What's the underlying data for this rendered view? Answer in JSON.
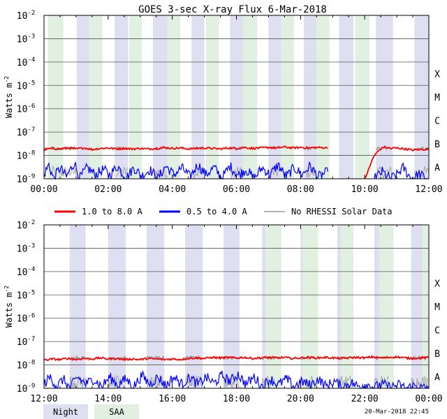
{
  "chart_data": {
    "type": "line",
    "title": "GOES 3-sec X-ray Flux    6-Mar-2018",
    "ylabel": "Watts m",
    "ylabel_sup": "-2",
    "y_scale": "log",
    "ylim": [
      1e-09,
      0.01
    ],
    "y_ticks": [
      {
        "base": "10",
        "exp": "-2"
      },
      {
        "base": "10",
        "exp": "-3"
      },
      {
        "base": "10",
        "exp": "-4"
      },
      {
        "base": "10",
        "exp": "-5"
      },
      {
        "base": "10",
        "exp": "-6"
      },
      {
        "base": "10",
        "exp": "-7"
      },
      {
        "base": "10",
        "exp": "-8"
      },
      {
        "base": "10",
        "exp": "-9"
      }
    ],
    "flare_classes": [
      "X",
      "M",
      "C",
      "B",
      "A"
    ],
    "legend": {
      "long": "1.0 to 8.0 A",
      "short": "0.5 to 4.0 A",
      "none": "No RHESSI Solar Data"
    },
    "band_legend": {
      "night": "Night",
      "saa": "SAA"
    },
    "colors": {
      "long": "#ff0000",
      "short": "#0000ff",
      "none": "#999999",
      "night": "#dedff0",
      "saa": "#e1f0e1",
      "grid": "#555555"
    },
    "timestamp": "20-Mar-2018 22:45",
    "panels": [
      {
        "xlim": [
          0,
          12
        ],
        "x_tick_labels": [
          "00:00",
          "02:00",
          "04:00",
          "06:00",
          "08:00",
          "10:00",
          "12:00"
        ],
        "night": [
          [
            0.2,
            0.55
          ],
          [
            1.02,
            1.45
          ],
          [
            2.2,
            2.62
          ],
          [
            3.4,
            3.85
          ],
          [
            4.6,
            5.0
          ],
          [
            5.8,
            6.25
          ],
          [
            7.0,
            7.4
          ],
          [
            8.1,
            8.5
          ],
          [
            9.2,
            9.65
          ],
          [
            10.35,
            10.88
          ],
          [
            11.55,
            12.0
          ]
        ],
        "saa": [
          [
            0.12,
            0.6
          ],
          [
            1.4,
            1.82
          ],
          [
            2.65,
            3.05
          ],
          [
            3.85,
            4.25
          ],
          [
            5.05,
            5.45
          ],
          [
            6.2,
            6.65
          ],
          [
            7.4,
            7.8
          ],
          [
            8.5,
            8.9
          ],
          [
            9.7,
            10.15
          ]
        ],
        "no_data": [
          [
            8.85,
            10.0
          ]
        ],
        "rhessi_gaps": [
          [
            0.2,
            0.6
          ],
          [
            0.6,
            1.0
          ],
          [
            2.25,
            2.6
          ],
          [
            3.45,
            3.85
          ],
          [
            4.65,
            4.95
          ],
          [
            5.85,
            6.2
          ],
          [
            7.05,
            7.35
          ],
          [
            8.15,
            8.5
          ],
          [
            10.35,
            10.85
          ],
          [
            11.55,
            12.0
          ]
        ],
        "long": [
          [
            0.0,
            1.8e-08
          ],
          [
            0.25,
            2e-08
          ],
          [
            0.5,
            1.9e-08
          ],
          [
            0.75,
            2.1e-08
          ],
          [
            1.0,
            1.9e-08
          ],
          [
            1.25,
            2.1e-08
          ],
          [
            1.5,
            1.8e-08
          ],
          [
            1.75,
            2e-08
          ],
          [
            2.0,
            2.1e-08
          ],
          [
            2.25,
            1.9e-08
          ],
          [
            2.5,
            2e-08
          ],
          [
            2.75,
            1.9e-08
          ],
          [
            3.0,
            2e-08
          ],
          [
            3.25,
            1.9e-08
          ],
          [
            3.5,
            2e-08
          ],
          [
            3.75,
            2.2e-08
          ],
          [
            4.0,
            2e-08
          ],
          [
            4.25,
            2.1e-08
          ],
          [
            4.5,
            1.9e-08
          ],
          [
            4.75,
            2e-08
          ],
          [
            5.0,
            2.1e-08
          ],
          [
            5.25,
            2e-08
          ],
          [
            5.5,
            1.9e-08
          ],
          [
            5.75,
            2.1e-08
          ],
          [
            6.0,
            2e-08
          ],
          [
            6.25,
            2.2e-08
          ],
          [
            6.5,
            2e-08
          ],
          [
            6.75,
            2.1e-08
          ],
          [
            7.0,
            2.2e-08
          ],
          [
            7.25,
            2.1e-08
          ],
          [
            7.5,
            2.3e-08
          ],
          [
            7.75,
            2.1e-08
          ],
          [
            8.0,
            2.2e-08
          ],
          [
            8.25,
            2.1e-08
          ],
          [
            8.5,
            2.2e-08
          ],
          [
            8.85,
            2.1e-08
          ],
          [
            null,
            null
          ],
          [
            10.0,
            1e-09
          ],
          [
            10.1,
            2e-09
          ],
          [
            10.2,
            5e-09
          ],
          [
            10.3,
            1e-08
          ],
          [
            10.45,
            1.7e-08
          ],
          [
            10.6,
            2.3e-08
          ],
          [
            10.8,
            2e-08
          ],
          [
            11.0,
            2.1e-08
          ],
          [
            11.25,
            1.9e-08
          ],
          [
            11.5,
            1.7e-08
          ],
          [
            11.75,
            1.8e-08
          ],
          [
            12.0,
            1.8e-08
          ]
        ],
        "short": [
          [
            0.0,
            1.5e-09
          ],
          [
            0.15,
            4e-09
          ],
          [
            0.3,
            1e-09
          ],
          [
            0.5,
            3e-09
          ],
          [
            0.7,
            1.2e-09
          ],
          [
            0.95,
            5e-09
          ],
          [
            1.1,
            1e-09
          ],
          [
            1.35,
            3e-09
          ],
          [
            1.6,
            1.5e-09
          ],
          [
            1.85,
            2.5e-09
          ],
          [
            2.05,
            1.5e-09
          ],
          [
            2.3,
            3.5e-09
          ],
          [
            2.55,
            1e-09
          ],
          [
            2.8,
            3e-09
          ],
          [
            3.05,
            1.3e-09
          ],
          [
            3.3,
            2.5e-09
          ],
          [
            3.55,
            1e-09
          ],
          [
            3.8,
            3.5e-09
          ],
          [
            4.05,
            1.5e-09
          ],
          [
            4.3,
            3e-09
          ],
          [
            4.55,
            1.2e-09
          ],
          [
            4.8,
            4e-09
          ],
          [
            5.05,
            1.5e-09
          ],
          [
            5.3,
            3e-09
          ],
          [
            5.55,
            1.1e-09
          ],
          [
            5.8,
            3.5e-09
          ],
          [
            6.05,
            1.4e-09
          ],
          [
            6.3,
            2.5e-09
          ],
          [
            6.55,
            1e-09
          ],
          [
            6.8,
            3e-09
          ],
          [
            7.05,
            1.5e-09
          ],
          [
            7.3,
            4e-09
          ],
          [
            7.55,
            1.2e-09
          ],
          [
            7.8,
            3e-09
          ],
          [
            8.05,
            1.5e-09
          ],
          [
            8.3,
            3.5e-09
          ],
          [
            8.55,
            1.2e-09
          ],
          [
            8.85,
            2e-09
          ],
          [
            null,
            null
          ],
          [
            10.3,
            1e-09
          ],
          [
            10.55,
            2e-09
          ],
          [
            10.8,
            1e-09
          ],
          [
            11.0,
            1.5e-09
          ],
          [
            11.2,
            3e-09
          ],
          [
            11.45,
            1e-09
          ],
          [
            11.7,
            1.5e-09
          ],
          [
            12.0,
            1e-09
          ]
        ]
      },
      {
        "xlim": [
          12,
          24
        ],
        "x_tick_labels": [
          "12:00",
          "14:00",
          "16:00",
          "18:00",
          "20:00",
          "22:00",
          "00:00"
        ],
        "night": [
          [
            12.8,
            13.3
          ],
          [
            14.0,
            14.55
          ],
          [
            15.2,
            15.75
          ],
          [
            16.4,
            16.95
          ],
          [
            17.6,
            18.1
          ],
          [
            18.8,
            19.3
          ],
          [
            20.0,
            20.45
          ],
          [
            21.15,
            21.65
          ],
          [
            22.3,
            22.75
          ],
          [
            23.45,
            23.95
          ]
        ],
        "saa": [
          [
            18.9,
            19.4
          ],
          [
            20.05,
            20.55
          ],
          [
            21.25,
            21.65
          ],
          [
            22.45,
            22.9
          ],
          [
            23.8,
            24.0
          ]
        ],
        "no_data": [],
        "rhessi_gaps": [
          [
            12.8,
            13.3
          ],
          [
            14.0,
            14.55
          ],
          [
            15.2,
            15.75
          ],
          [
            16.4,
            16.95
          ],
          [
            17.6,
            18.15
          ],
          [
            18.8,
            19.3
          ],
          [
            20.0,
            20.45
          ],
          [
            21.15,
            21.65
          ],
          [
            22.3,
            22.75
          ],
          [
            23.45,
            23.95
          ]
        ],
        "long": [
          [
            12.0,
            1.6e-08
          ],
          [
            12.25,
            1.8e-08
          ],
          [
            12.5,
            1.7e-08
          ],
          [
            12.75,
            1.9e-08
          ],
          [
            13.0,
            1.7e-08
          ],
          [
            13.25,
            1.9e-08
          ],
          [
            13.5,
            1.8e-08
          ],
          [
            13.75,
            2e-08
          ],
          [
            14.0,
            1.8e-08
          ],
          [
            14.25,
            1.9e-08
          ],
          [
            14.5,
            1.7e-08
          ],
          [
            14.75,
            1.8e-08
          ],
          [
            15.0,
            1.7e-08
          ],
          [
            15.25,
            1.9e-08
          ],
          [
            15.5,
            1.8e-08
          ],
          [
            15.75,
            1.7e-08
          ],
          [
            16.0,
            1.8e-08
          ],
          [
            16.25,
            1.7e-08
          ],
          [
            16.5,
            1.9e-08
          ],
          [
            16.75,
            2e-08
          ],
          [
            17.0,
            1.9e-08
          ],
          [
            17.25,
            2.1e-08
          ],
          [
            17.5,
            2e-08
          ],
          [
            17.75,
            2.1e-08
          ],
          [
            18.0,
            2e-08
          ],
          [
            18.25,
            2.1e-08
          ],
          [
            18.5,
            1.9e-08
          ],
          [
            18.75,
            2e-08
          ],
          [
            19.0,
            2.1e-08
          ],
          [
            19.25,
            2e-08
          ],
          [
            19.5,
            2.1e-08
          ],
          [
            19.75,
            1.9e-08
          ],
          [
            20.0,
            2e-08
          ],
          [
            20.25,
            2.1e-08
          ],
          [
            20.5,
            2e-08
          ],
          [
            20.75,
            2.1e-08
          ],
          [
            21.0,
            2e-08
          ],
          [
            21.25,
            1.9e-08
          ],
          [
            21.5,
            2e-08
          ],
          [
            21.75,
            2.1e-08
          ],
          [
            22.0,
            2e-08
          ],
          [
            22.25,
            2.2e-08
          ],
          [
            22.5,
            2e-08
          ],
          [
            22.75,
            2.1e-08
          ],
          [
            23.0,
            2.2e-08
          ],
          [
            23.25,
            2e-08
          ],
          [
            23.5,
            1.9e-08
          ],
          [
            23.75,
            2e-08
          ],
          [
            24.0,
            2.1e-08
          ]
        ],
        "short": [
          [
            12.0,
            1.5e-09
          ],
          [
            12.2,
            3e-09
          ],
          [
            12.4,
            1.2e-09
          ],
          [
            12.6,
            2.5e-09
          ],
          [
            12.8,
            1e-09
          ],
          [
            13.05,
            3e-09
          ],
          [
            13.3,
            1.5e-09
          ],
          [
            13.55,
            2.5e-09
          ],
          [
            13.8,
            1.2e-09
          ],
          [
            14.05,
            3e-09
          ],
          [
            14.3,
            1.4e-09
          ],
          [
            14.55,
            2.5e-09
          ],
          [
            14.8,
            1.2e-09
          ],
          [
            15.05,
            3.5e-09
          ],
          [
            15.3,
            1.5e-09
          ],
          [
            15.55,
            3e-09
          ],
          [
            15.8,
            1.3e-09
          ],
          [
            16.05,
            3e-09
          ],
          [
            16.3,
            1.5e-09
          ],
          [
            16.55,
            3e-09
          ],
          [
            16.8,
            1.4e-09
          ],
          [
            17.05,
            3e-09
          ],
          [
            17.3,
            1.6e-09
          ],
          [
            17.55,
            3.5e-09
          ],
          [
            17.8,
            2e-09
          ],
          [
            18.05,
            4e-09
          ],
          [
            18.3,
            1.5e-09
          ],
          [
            18.55,
            3e-09
          ],
          [
            18.8,
            1.2e-09
          ],
          [
            19.05,
            2.5e-09
          ],
          [
            19.3,
            1.4e-09
          ],
          [
            19.55,
            2.5e-09
          ],
          [
            19.8,
            1.2e-09
          ],
          [
            20.05,
            2e-09
          ],
          [
            20.3,
            1.3e-09
          ],
          [
            20.55,
            2.5e-09
          ],
          [
            20.8,
            1.2e-09
          ],
          [
            21.05,
            2e-09
          ],
          [
            21.3,
            1.1e-09
          ],
          [
            21.55,
            1.8e-09
          ],
          [
            21.8,
            1.2e-09
          ],
          [
            22.05,
            1.5e-09
          ],
          [
            22.3,
            1.1e-09
          ],
          [
            22.55,
            1.5e-09
          ],
          [
            22.8,
            1.1e-09
          ],
          [
            23.05,
            1.4e-09
          ],
          [
            23.3,
            1e-09
          ],
          [
            23.55,
            1.3e-09
          ],
          [
            23.8,
            1e-09
          ],
          [
            24.0,
            1.2e-09
          ]
        ]
      }
    ]
  }
}
